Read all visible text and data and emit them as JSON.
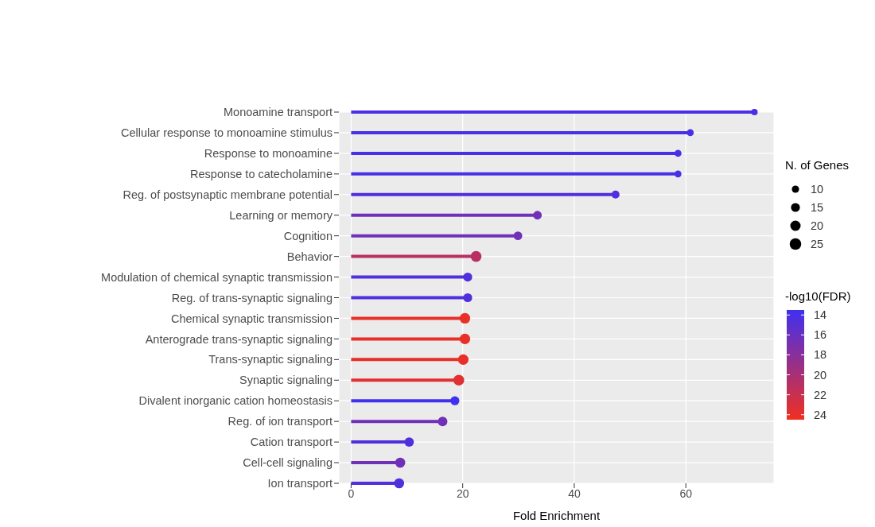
{
  "chart_data": {
    "type": "lollipop",
    "orientation": "horizontal",
    "xlabel": "Fold Enrichment",
    "categories": [
      "Monoamine transport",
      "Cellular response to monoamine stimulus",
      "Response to monoamine",
      "Response to catecholamine",
      "Reg. of postsynaptic membrane potential",
      "Learning or memory",
      "Cognition",
      "Behavior",
      "Modulation of chemical synaptic transmission",
      "Reg. of trans-synaptic signaling",
      "Chemical synaptic transmission",
      "Anterograde trans-synaptic signaling",
      "Trans-synaptic signaling",
      "Synaptic signaling",
      "Divalent inorganic cation homeostasis",
      "Reg. of ion transport",
      "Cation transport",
      "Cell-cell signaling",
      "Ion transport"
    ],
    "values": [
      72.3,
      60.8,
      58.6,
      58.6,
      47.4,
      33.4,
      29.9,
      22.4,
      20.9,
      20.9,
      20.4,
      20.4,
      20.1,
      19.3,
      18.6,
      16.4,
      10.4,
      8.8,
      8.6
    ],
    "sizes": [
      8,
      9,
      9,
      9,
      12,
      14,
      14,
      22,
      15,
      15,
      21,
      21,
      21,
      22,
      15,
      17,
      17,
      19,
      19
    ],
    "size_legend": [
      10,
      15,
      20,
      25
    ],
    "legend_title": "N. of Genes",
    "cvalues": [
      14,
      14,
      14,
      14,
      14.5,
      16.5,
      16.5,
      21,
      14.5,
      14.5,
      24,
      24,
      24,
      23.5,
      13.5,
      16.5,
      14.5,
      16.5,
      14.5
    ],
    "clabel": "-log10(FDR)",
    "clim": [
      13.5,
      24.5
    ],
    "cticks": [
      14,
      16,
      18,
      20,
      22,
      24
    ],
    "xlim": [
      -2.2,
      75.8
    ],
    "xticks": [
      0,
      20,
      40,
      60
    ],
    "grid": true,
    "marker": "circle"
  }
}
